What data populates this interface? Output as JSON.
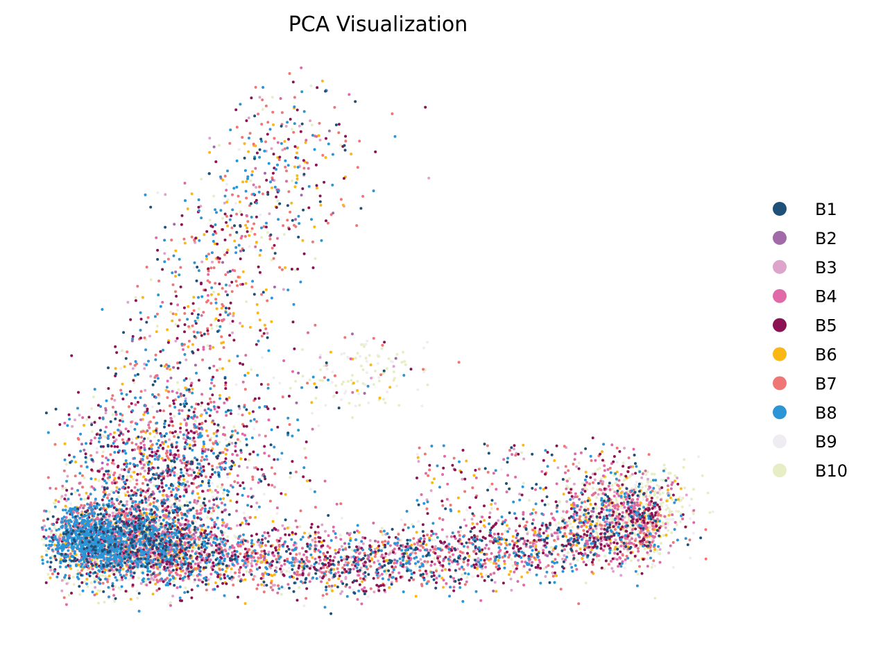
{
  "chart_data": {
    "type": "scatter",
    "title": "PCA Visualization",
    "xlabel": "",
    "ylabel": "",
    "xlim": [
      -1,
      1
    ],
    "ylim": [
      -1,
      1
    ],
    "axes_visible": false,
    "grid": false,
    "legend_placement": "right",
    "series": [
      {
        "name": "B1",
        "color": "#1f5078"
      },
      {
        "name": "B2",
        "color": "#a36aa9"
      },
      {
        "name": "B3",
        "color": "#dda4cc"
      },
      {
        "name": "B4",
        "color": "#e06aa8"
      },
      {
        "name": "B5",
        "color": "#8c1353"
      },
      {
        "name": "B6",
        "color": "#fbb713"
      },
      {
        "name": "B7",
        "color": "#ef7674"
      },
      {
        "name": "B8",
        "color": "#2b95d6"
      },
      {
        "name": "B9",
        "color": "#efedf2"
      },
      {
        "name": "B10",
        "color": "#e7eec6"
      }
    ]
  }
}
